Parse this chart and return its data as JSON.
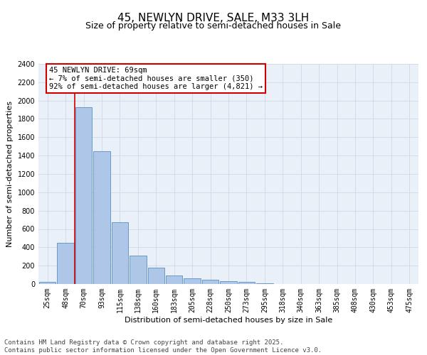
{
  "title": "45, NEWLYN DRIVE, SALE, M33 3LH",
  "subtitle": "Size of property relative to semi-detached houses in Sale",
  "xlabel": "Distribution of semi-detached houses by size in Sale",
  "ylabel": "Number of semi-detached properties",
  "categories": [
    "25sqm",
    "48sqm",
    "70sqm",
    "93sqm",
    "115sqm",
    "138sqm",
    "160sqm",
    "183sqm",
    "205sqm",
    "228sqm",
    "250sqm",
    "273sqm",
    "295sqm",
    "318sqm",
    "340sqm",
    "363sqm",
    "385sqm",
    "408sqm",
    "430sqm",
    "453sqm",
    "475sqm"
  ],
  "values": [
    20,
    450,
    1930,
    1450,
    670,
    310,
    175,
    95,
    65,
    50,
    30,
    20,
    5,
    3,
    2,
    1,
    1,
    0,
    0,
    0,
    0
  ],
  "bar_color": "#aec6e8",
  "bar_edge_color": "#5a8fc2",
  "annotation_text": "45 NEWLYN DRIVE: 69sqm\n← 7% of semi-detached houses are smaller (350)\n92% of semi-detached houses are larger (4,821) →",
  "annotation_box_color": "#ffffff",
  "annotation_box_edge_color": "#cc0000",
  "grid_color": "#d0d8e8",
  "background_color": "#eaf0f8",
  "ylim": [
    0,
    2400
  ],
  "yticks": [
    0,
    200,
    400,
    600,
    800,
    1000,
    1200,
    1400,
    1600,
    1800,
    2000,
    2200,
    2400
  ],
  "footer_text": "Contains HM Land Registry data © Crown copyright and database right 2025.\nContains public sector information licensed under the Open Government Licence v3.0.",
  "title_fontsize": 11,
  "subtitle_fontsize": 9,
  "label_fontsize": 8,
  "tick_fontsize": 7,
  "footer_fontsize": 6.5,
  "annotation_fontsize": 7.5
}
